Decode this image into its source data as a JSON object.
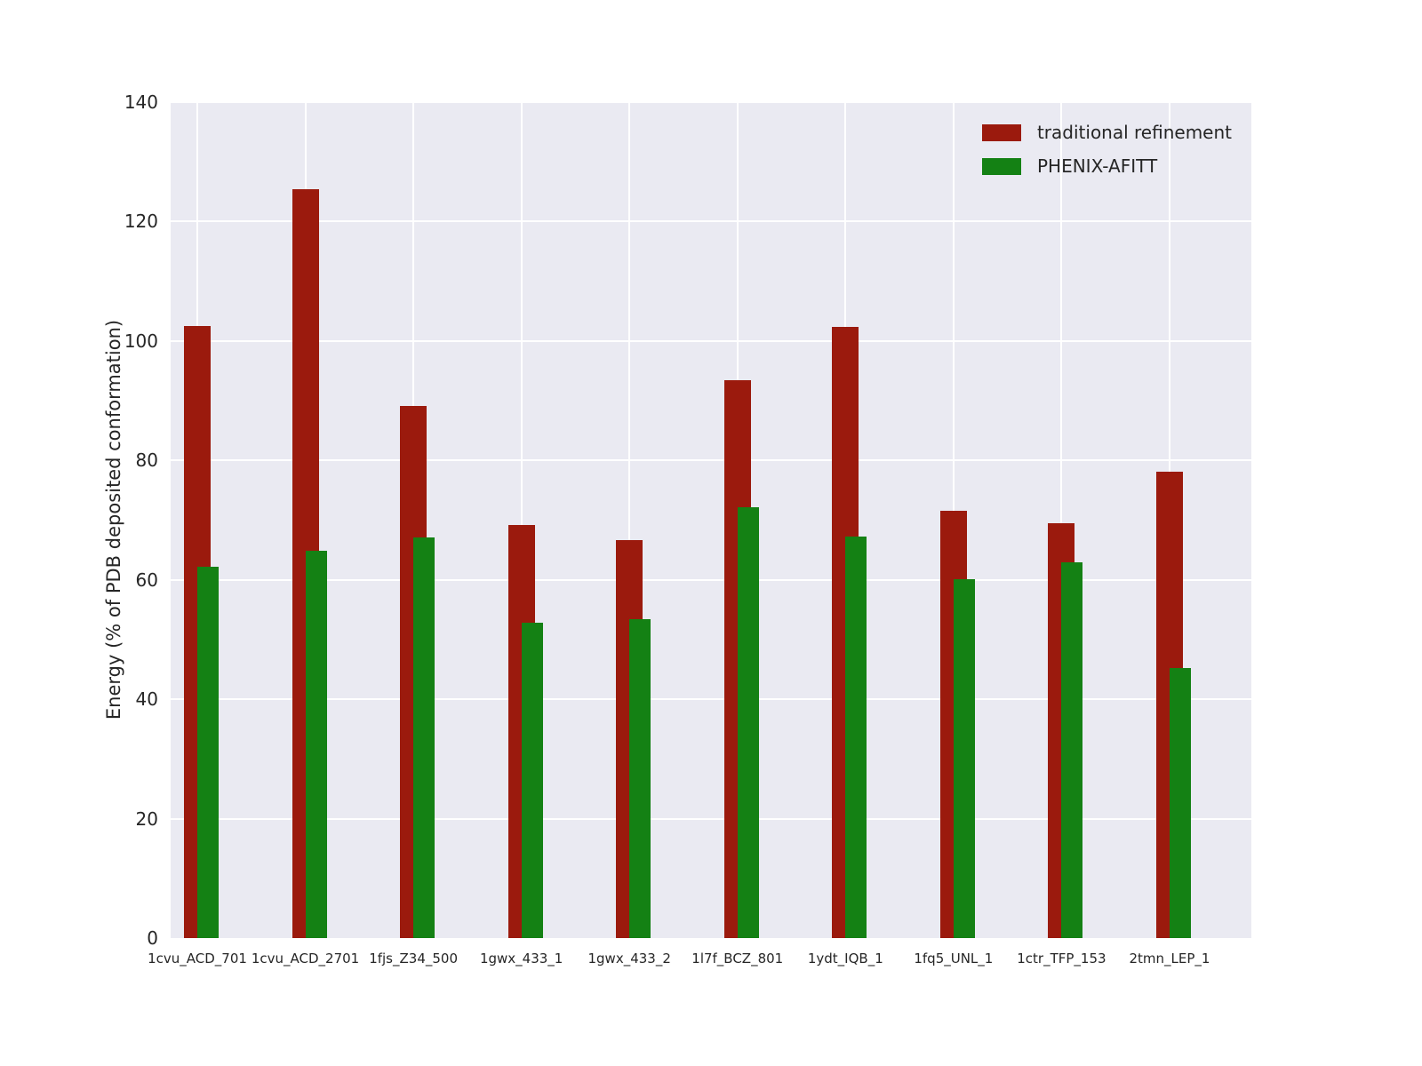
{
  "chart_data": {
    "type": "bar",
    "title": "",
    "xlabel": "",
    "ylabel": "Energy (% of PDB deposited conformation)",
    "ylim": [
      0,
      140
    ],
    "yticks": [
      0,
      20,
      40,
      60,
      80,
      100,
      120,
      140
    ],
    "grid": true,
    "legend_position": "upper right",
    "plot_background_color": "#eaeaf2",
    "grid_color": "#ffffff",
    "categories": [
      "1cvu_ACD_701",
      "1cvu_ACD_2701",
      "1fjs_Z34_500",
      "1gwx_433_1",
      "1gwx_433_2",
      "1l7f_BCZ_801",
      "1ydt_IQB_1",
      "1fq5_UNL_1",
      "1ctr_TFP_153",
      "2tmn_LEP_1"
    ],
    "series": [
      {
        "name": "traditional refinement",
        "color": "#9b1a0d",
        "values": [
          102.5,
          125.4,
          89.1,
          69.2,
          66.7,
          93.4,
          102.4,
          71.6,
          69.5,
          78.1
        ]
      },
      {
        "name": "PHENIX-AFITT",
        "color": "#148114",
        "values": [
          62.2,
          64.9,
          67.1,
          52.8,
          53.4,
          72.2,
          67.3,
          60.1,
          62.9,
          45.2
        ]
      }
    ]
  }
}
